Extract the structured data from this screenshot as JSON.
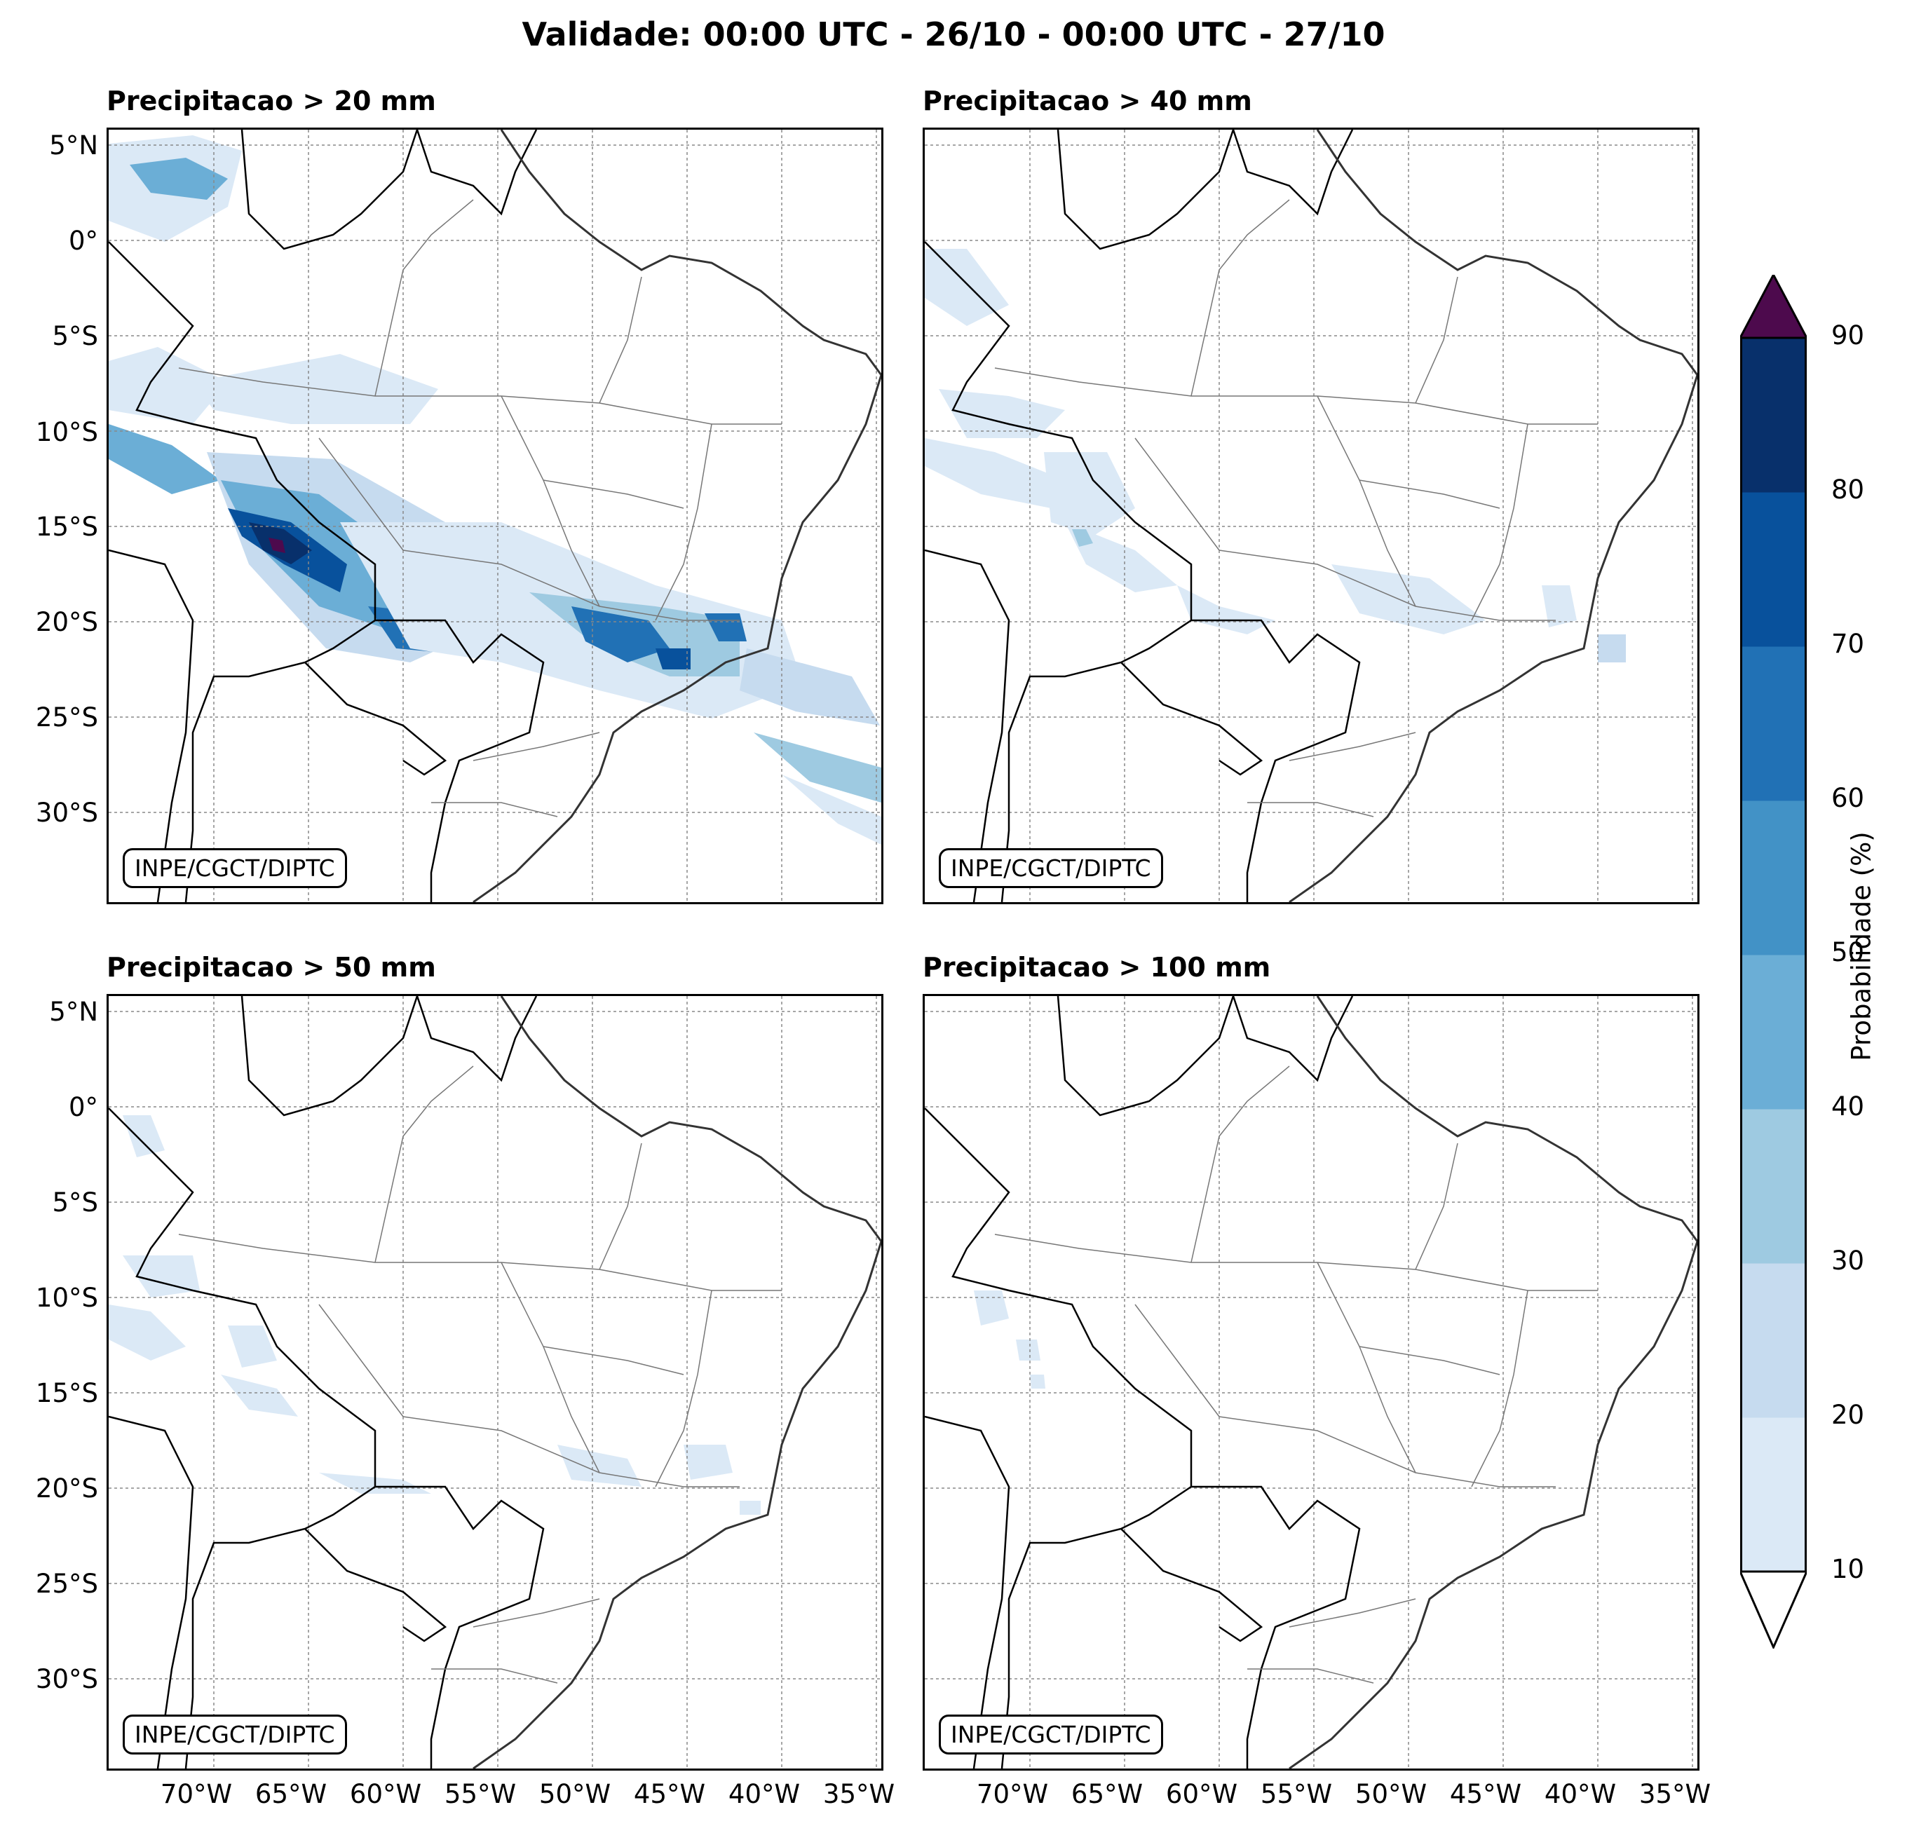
{
  "title": "Validade: 00:00 UTC - 26/10 - 00:00 UTC - 27/10",
  "panels": [
    {
      "title": "Precipitacao > 20 mm",
      "credit": "INPE/CGCT/DIPTC"
    },
    {
      "title": "Precipitacao > 40 mm",
      "credit": "INPE/CGCT/DIPTC"
    },
    {
      "title": "Precipitacao > 50 mm",
      "credit": "INPE/CGCT/DIPTC"
    },
    {
      "title": "Precipitacao > 100 mm",
      "credit": "INPE/CGCT/DIPTC"
    }
  ],
  "lat_labels": [
    "5°N",
    "0°",
    "5°S",
    "10°S",
    "15°S",
    "20°S",
    "25°S",
    "30°S"
  ],
  "lon_labels": [
    "70°W",
    "65°W",
    "60°W",
    "55°W",
    "50°W",
    "45°W",
    "40°W",
    "35°W"
  ],
  "colorbar": {
    "label": "Probabilidade (%)",
    "ticks": [
      "10",
      "20",
      "30",
      "40",
      "50",
      "60",
      "70",
      "80",
      "90"
    ],
    "colors": [
      "#dbe9f6",
      "#c6dbef",
      "#9ecae1",
      "#6baed6",
      "#4292c6",
      "#2171b5",
      "#08519c",
      "#08306b"
    ],
    "over_color": "#4d0a4d"
  },
  "colors": {
    "light": "#dbe9f6",
    "pale": "#c6dbef",
    "mid": "#6baed6",
    "strong": "#2171b5",
    "dark": "#08519c",
    "deep": "#08306b",
    "extreme": "#4d0a4d"
  }
}
